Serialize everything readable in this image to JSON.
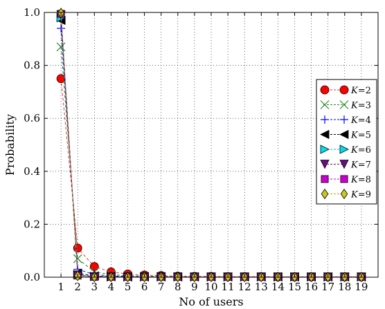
{
  "chart_data": {
    "type": "line",
    "xlabel": "No of users",
    "ylabel": "Probability",
    "xlim": [
      0,
      20
    ],
    "ylim": [
      0,
      1.0
    ],
    "x_ticks": [
      1,
      2,
      3,
      4,
      5,
      6,
      7,
      8,
      9,
      10,
      11,
      12,
      13,
      14,
      15,
      16,
      17,
      18,
      19
    ],
    "y_ticks": [
      0.0,
      0.2,
      0.4,
      0.6,
      0.8,
      1.0
    ],
    "y_tick_labels": [
      "0.0",
      "0.2",
      "0.4",
      "0.6",
      "0.8",
      "1.0"
    ],
    "grid": true,
    "legend_position": "right",
    "x": [
      1,
      2,
      3,
      4,
      5,
      6,
      7,
      8,
      9,
      10,
      11,
      12,
      13,
      14,
      15,
      16,
      17,
      18,
      19
    ],
    "series": [
      {
        "name": "K=2",
        "label_var": "K",
        "label_eq": "=2",
        "color": "#ff0000",
        "marker": "circle",
        "line": "#dd3333",
        "values": [
          0.75,
          0.11,
          0.04,
          0.02,
          0.012,
          0.008,
          0.006,
          0.004,
          0.003,
          0.003,
          0.002,
          0.002,
          0.002,
          0.001,
          0.001,
          0.001,
          0.001,
          0.001,
          0.001
        ]
      },
      {
        "name": "K=3",
        "label_var": "K",
        "label_eq": "=3",
        "color": "#228b22",
        "marker": "x",
        "line": "#228b22",
        "values": [
          0.87,
          0.07,
          0.02,
          0.01,
          0.006,
          0.004,
          0.003,
          0.002,
          0.001,
          0.001,
          0.001,
          0.001,
          0.001,
          0.001,
          0.001,
          0.001,
          0.001,
          0.001,
          0.001
        ]
      },
      {
        "name": "K=4",
        "label_var": "K",
        "label_eq": "=4",
        "color": "#0000ff",
        "marker": "plus",
        "line": "#0000ff",
        "values": [
          0.94,
          0.03,
          0.01,
          0.005,
          0.003,
          0.002,
          0.001,
          0.001,
          0.001,
          0.001,
          0.001,
          0.001,
          0.001,
          0.001,
          0.001,
          0.001,
          0.001,
          0.001,
          0.001
        ]
      },
      {
        "name": "K=5",
        "label_var": "K",
        "label_eq": "=5",
        "color": "#000000",
        "marker": "triangle-left",
        "line": "#000000",
        "values": [
          0.97,
          0.015,
          0.005,
          0.002,
          0.001,
          0.001,
          0.001,
          0.001,
          0.001,
          0.001,
          0.001,
          0.001,
          0.001,
          0.001,
          0.001,
          0.001,
          0.001,
          0.001,
          0.001
        ]
      },
      {
        "name": "K=6",
        "label_var": "K",
        "label_eq": "=6",
        "color": "#00ddee",
        "marker": "triangle-right",
        "line": "#00aacc",
        "values": [
          0.98,
          0.01,
          0.003,
          0.001,
          0.001,
          0.001,
          0.001,
          0.001,
          0.001,
          0.001,
          0.001,
          0.001,
          0.001,
          0.001,
          0.001,
          0.001,
          0.001,
          0.001,
          0.001
        ]
      },
      {
        "name": "K=7",
        "label_var": "K",
        "label_eq": "=7",
        "color": "#6a0d83",
        "marker": "triangle-down",
        "line": "#6a0d83",
        "values": [
          0.99,
          0.008,
          0.002,
          0.001,
          0.001,
          0.001,
          0.001,
          0.001,
          0.001,
          0.001,
          0.001,
          0.001,
          0.001,
          0.001,
          0.001,
          0.001,
          0.001,
          0.001,
          0.001
        ]
      },
      {
        "name": "K=8",
        "label_var": "K",
        "label_eq": "=8",
        "color": "#cc00cc",
        "marker": "square",
        "line": "#cc00cc",
        "values": [
          0.995,
          0.006,
          0.001,
          0.001,
          0.001,
          0.001,
          0.001,
          0.001,
          0.001,
          0.001,
          0.001,
          0.001,
          0.001,
          0.001,
          0.001,
          0.001,
          0.001,
          0.001,
          0.001
        ]
      },
      {
        "name": "K=9",
        "label_var": "K",
        "label_eq": "=9",
        "color": "#c8c820",
        "marker": "diamond",
        "line": "#b0b000",
        "values": [
          0.998,
          0.005,
          0.001,
          0.001,
          0.001,
          0.001,
          0.001,
          0.001,
          0.001,
          0.001,
          0.001,
          0.001,
          0.001,
          0.001,
          0.001,
          0.001,
          0.001,
          0.001,
          0.001
        ]
      }
    ]
  }
}
